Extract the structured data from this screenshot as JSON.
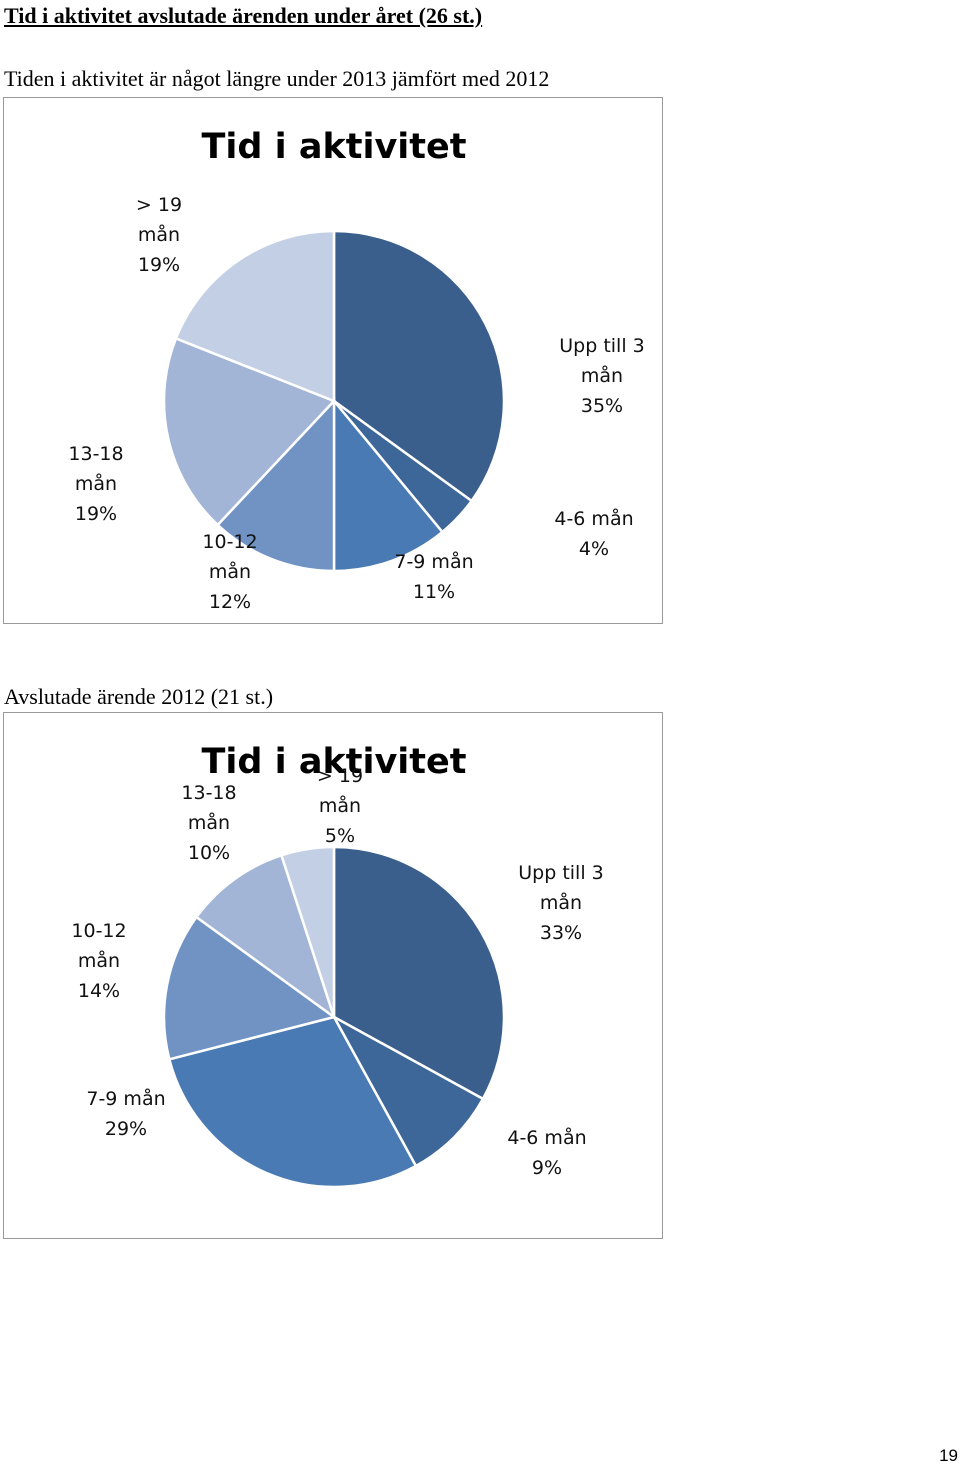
{
  "page": {
    "heading": "Tid i aktivitet avslutade ärenden under året (26 st.)",
    "subtitle": "Tiden i aktivitet är något längre under 2013 jämfört med 2012",
    "section2_title": "Avslutade ärende 2012 (21 st.)",
    "page_number": "19"
  },
  "chart_data": [
    {
      "type": "pie",
      "title": "Tid i aktivitet",
      "slices": [
        {
          "label": [
            "Upp till 3",
            "mån",
            "35%"
          ],
          "value": 35,
          "color": "#3a5f8c"
        },
        {
          "label": [
            "4-6 mån",
            "4%"
          ],
          "value": 4,
          "color": "#3d6699"
        },
        {
          "label": [
            "7-9 mån",
            "11%"
          ],
          "value": 11,
          "color": "#4a7ab3"
        },
        {
          "label": [
            "10-12",
            "mån",
            "12%"
          ],
          "value": 12,
          "color": "#7093c4"
        },
        {
          "label": [
            "13-18",
            "mån",
            "19%"
          ],
          "value": 19,
          "color": "#a2b5d6"
        },
        {
          "label": [
            "> 19",
            "mån",
            "19%"
          ],
          "value": 19,
          "color": "#c3cfe4"
        }
      ]
    },
    {
      "type": "pie",
      "title": "Tid i aktivitet",
      "slices": [
        {
          "label": [
            "Upp till 3",
            "mån",
            "33%"
          ],
          "value": 33,
          "color": "#3a5f8c"
        },
        {
          "label": [
            "4-6 mån",
            "9%"
          ],
          "value": 9,
          "color": "#3d6699"
        },
        {
          "label": [
            "7-9 mån",
            "29%"
          ],
          "value": 29,
          "color": "#4a7ab3"
        },
        {
          "label": [
            "10-12",
            "mån",
            "14%"
          ],
          "value": 14,
          "color": "#7093c4"
        },
        {
          "label": [
            "13-18",
            "mån",
            "10%"
          ],
          "value": 10,
          "color": "#a2b5d6"
        },
        {
          "label": [
            "> 19",
            "mån",
            "5%"
          ],
          "value": 5,
          "color": "#c3cfe4"
        }
      ]
    }
  ]
}
